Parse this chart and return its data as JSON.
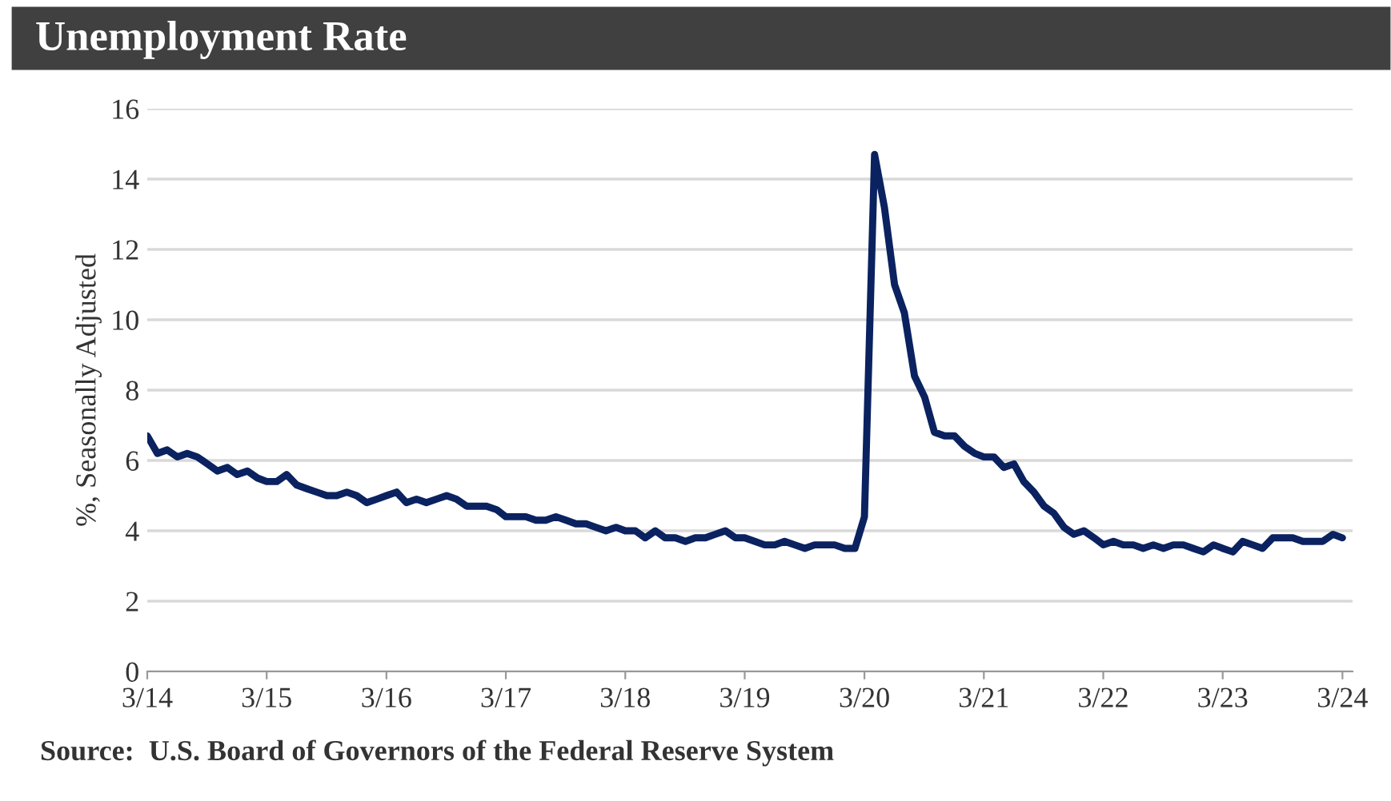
{
  "chart_data": {
    "type": "line",
    "title": "Unemployment Rate",
    "ylabel": "%, Seasonally Adjusted",
    "annotations": [
      "Source:  U.S. Board of Governors of the Federal Reserve System"
    ],
    "x": [
      "2014-03",
      "2014-04",
      "2014-05",
      "2014-06",
      "2014-07",
      "2014-08",
      "2014-09",
      "2014-10",
      "2014-11",
      "2014-12",
      "2015-01",
      "2015-02",
      "2015-03",
      "2015-04",
      "2015-05",
      "2015-06",
      "2015-07",
      "2015-08",
      "2015-09",
      "2015-10",
      "2015-11",
      "2015-12",
      "2016-01",
      "2016-02",
      "2016-03",
      "2016-04",
      "2016-05",
      "2016-06",
      "2016-07",
      "2016-08",
      "2016-09",
      "2016-10",
      "2016-11",
      "2016-12",
      "2017-01",
      "2017-02",
      "2017-03",
      "2017-04",
      "2017-05",
      "2017-06",
      "2017-07",
      "2017-08",
      "2017-09",
      "2017-10",
      "2017-11",
      "2017-12",
      "2018-01",
      "2018-02",
      "2018-03",
      "2018-04",
      "2018-05",
      "2018-06",
      "2018-07",
      "2018-08",
      "2018-09",
      "2018-10",
      "2018-11",
      "2018-12",
      "2019-01",
      "2019-02",
      "2019-03",
      "2019-04",
      "2019-05",
      "2019-06",
      "2019-07",
      "2019-08",
      "2019-09",
      "2019-10",
      "2019-11",
      "2019-12",
      "2020-01",
      "2020-02",
      "2020-03",
      "2020-04",
      "2020-05",
      "2020-06",
      "2020-07",
      "2020-08",
      "2020-09",
      "2020-10",
      "2020-11",
      "2020-12",
      "2021-01",
      "2021-02",
      "2021-03",
      "2021-04",
      "2021-05",
      "2021-06",
      "2021-07",
      "2021-08",
      "2021-09",
      "2021-10",
      "2021-11",
      "2021-12",
      "2022-01",
      "2022-02",
      "2022-03",
      "2022-04",
      "2022-05",
      "2022-06",
      "2022-07",
      "2022-08",
      "2022-09",
      "2022-10",
      "2022-11",
      "2022-12",
      "2023-01",
      "2023-02",
      "2023-03",
      "2023-04",
      "2023-05",
      "2023-06",
      "2023-07",
      "2023-08",
      "2023-09",
      "2023-10",
      "2023-11",
      "2023-12",
      "2024-01",
      "2024-02",
      "2024-03"
    ],
    "series": [
      {
        "color": "#0b2260",
        "values": [
          6.7,
          6.2,
          6.3,
          6.1,
          6.2,
          6.1,
          5.9,
          5.7,
          5.8,
          5.6,
          5.7,
          5.5,
          5.4,
          5.4,
          5.6,
          5.3,
          5.2,
          5.1,
          5.0,
          5.0,
          5.1,
          5.0,
          4.8,
          4.9,
          5.0,
          5.1,
          4.8,
          4.9,
          4.8,
          4.9,
          5.0,
          4.9,
          4.7,
          4.7,
          4.7,
          4.6,
          4.4,
          4.4,
          4.4,
          4.3,
          4.3,
          4.4,
          4.3,
          4.2,
          4.2,
          4.1,
          4.0,
          4.1,
          4.0,
          4.0,
          3.8,
          4.0,
          3.8,
          3.8,
          3.7,
          3.8,
          3.8,
          3.9,
          4.0,
          3.8,
          3.8,
          3.7,
          3.6,
          3.6,
          3.7,
          3.6,
          3.5,
          3.6,
          3.6,
          3.6,
          3.5,
          3.5,
          4.4,
          14.7,
          13.2,
          11.0,
          10.2,
          8.4,
          7.8,
          6.8,
          6.7,
          6.7,
          6.4,
          6.2,
          6.1,
          6.1,
          5.8,
          5.9,
          5.4,
          5.1,
          4.7,
          4.5,
          4.1,
          3.9,
          4.0,
          3.8,
          3.6,
          3.7,
          3.6,
          3.6,
          3.5,
          3.6,
          3.5,
          3.6,
          3.6,
          3.5,
          3.4,
          3.6,
          3.5,
          3.4,
          3.7,
          3.6,
          3.5,
          3.8,
          3.8,
          3.8,
          3.7,
          3.7,
          3.7,
          3.9,
          3.8
        ]
      }
    ],
    "xlim": [
      "2014-03-01",
      "2024-04-01"
    ],
    "xticks": [
      {
        "value": "2014-03",
        "label": "3/14"
      },
      {
        "value": "2015-03",
        "label": "3/15"
      },
      {
        "value": "2016-03",
        "label": "3/16"
      },
      {
        "value": "2017-03",
        "label": "3/17"
      },
      {
        "value": "2018-03",
        "label": "3/18"
      },
      {
        "value": "2019-03",
        "label": "3/19"
      },
      {
        "value": "2020-03",
        "label": "3/20"
      },
      {
        "value": "2021-03",
        "label": "3/21"
      },
      {
        "value": "2022-03",
        "label": "3/22"
      },
      {
        "value": "2023-03",
        "label": "3/23"
      },
      {
        "value": "2024-03",
        "label": "3/24"
      }
    ],
    "ylim": [
      0,
      16
    ],
    "yticks": [
      0,
      2,
      4,
      6,
      8,
      10,
      12,
      14,
      16
    ],
    "grid": "y",
    "legend": false,
    "line_style": "solid",
    "marker": "none"
  }
}
